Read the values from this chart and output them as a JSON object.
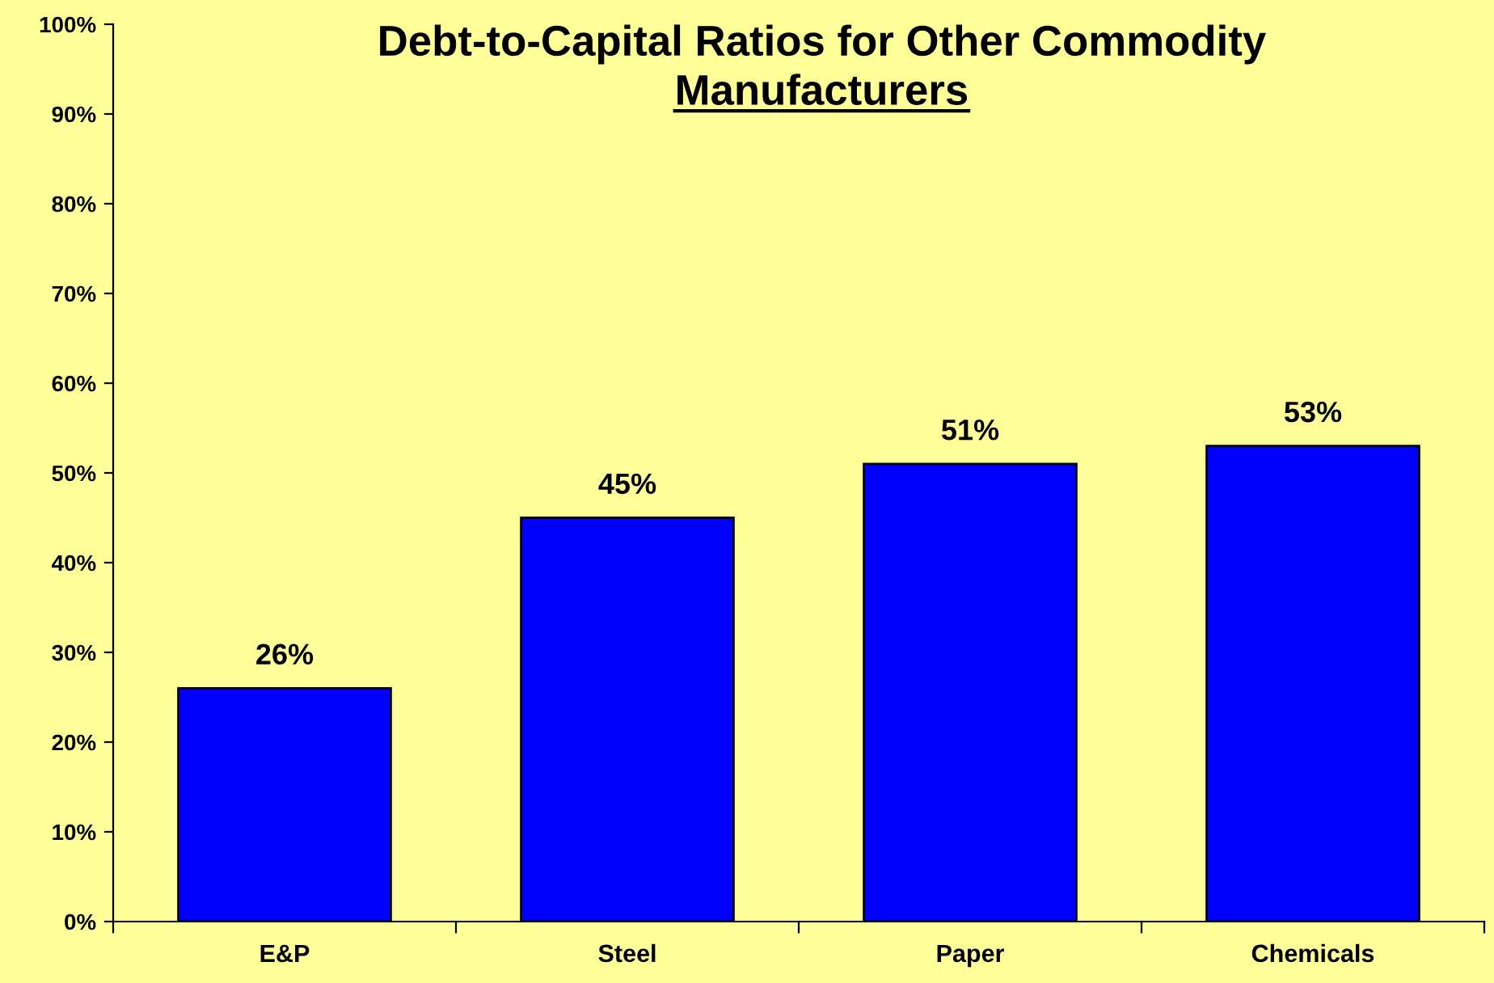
{
  "chart_data": {
    "type": "bar",
    "title": "Debt-to-Capital Ratios for Other Commodity Manufacturers",
    "categories": [
      "E&P",
      "Steel",
      "Paper",
      "Chemicals"
    ],
    "values": [
      26,
      45,
      51,
      53
    ],
    "value_labels": [
      "26%",
      "45%",
      "51%",
      "53%"
    ],
    "color": "#0000ff",
    "ylim": [
      0,
      100
    ],
    "yticks": [
      {
        "value": 0,
        "label": "0%"
      },
      {
        "value": 10,
        "label": "10%"
      },
      {
        "value": 20,
        "label": "20%"
      },
      {
        "value": 30,
        "label": "30%"
      },
      {
        "value": 40,
        "label": "40%"
      },
      {
        "value": 50,
        "label": "50%"
      },
      {
        "value": 60,
        "label": "60%"
      },
      {
        "value": 70,
        "label": "70%"
      },
      {
        "value": 80,
        "label": "80%"
      },
      {
        "value": 90,
        "label": "90%"
      },
      {
        "value": 100,
        "label": "100%"
      }
    ],
    "grid": false
  }
}
